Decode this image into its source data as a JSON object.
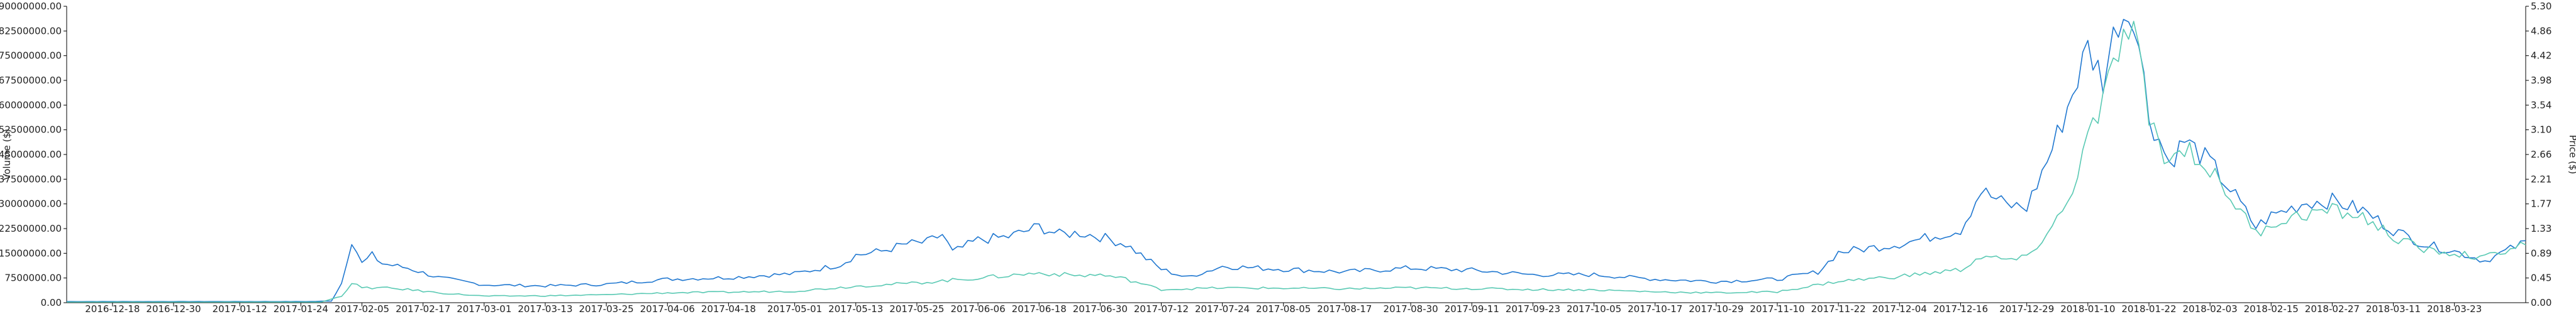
{
  "chart_data": {
    "type": "line",
    "x_start": "2016-12-09",
    "x_end": "2018-04-06",
    "y_left": {
      "label": "Volume ($)",
      "ylim": [
        0,
        90000000
      ],
      "ticks": [
        "0.00",
        "7500000.00",
        "15000000.00",
        "22500000.00",
        "30000000.00",
        "37500000.00",
        "45000000.00",
        "52500000.00",
        "60000000.00",
        "67500000.00",
        "75000000.00",
        "82500000.00",
        "90000000.00"
      ]
    },
    "y_right": {
      "label": "Price ($)",
      "ylim": [
        0,
        5.3
      ],
      "ticks": [
        "0.00",
        "0.45",
        "0.89",
        "1.33",
        "1.77",
        "2.21",
        "2.66",
        "3.10",
        "3.54",
        "3.98",
        "4.42",
        "4.86",
        "5.30"
      ]
    },
    "x_ticks": [
      "2016-12-18",
      "2016-12-30",
      "2017-01-12",
      "2017-01-24",
      "2017-02-05",
      "2017-02-17",
      "2017-03-01",
      "2017-03-13",
      "2017-03-25",
      "2017-04-06",
      "2017-04-18",
      "2017-05-01",
      "2017-05-13",
      "2017-05-25",
      "2017-06-06",
      "2017-06-18",
      "2017-06-30",
      "2017-07-12",
      "2017-07-24",
      "2017-08-05",
      "2017-08-17",
      "2017-08-30",
      "2017-09-11",
      "2017-09-23",
      "2017-10-05",
      "2017-10-17",
      "2017-10-29",
      "2017-11-10",
      "2017-11-22",
      "2017-12-04",
      "2017-12-16",
      "2017-12-29",
      "2018-01-10",
      "2018-01-22",
      "2018-02-03",
      "2018-02-15",
      "2018-02-27",
      "2018-03-11",
      "2018-03-23"
    ],
    "grid": false,
    "series": [
      {
        "axis": "right",
        "color": "#1f77d0",
        "points": [
          [
            "2016-12-09",
            0.02
          ],
          [
            "2017-01-01",
            0.02
          ],
          [
            "2017-01-25",
            0.02
          ],
          [
            "2017-01-30",
            0.03
          ],
          [
            "2017-02-01",
            0.35
          ],
          [
            "2017-02-03",
            1.12
          ],
          [
            "2017-02-05",
            0.7
          ],
          [
            "2017-02-07",
            0.85
          ],
          [
            "2017-02-09",
            0.7
          ],
          [
            "2017-02-14",
            0.62
          ],
          [
            "2017-02-20",
            0.45
          ],
          [
            "2017-03-01",
            0.32
          ],
          [
            "2017-03-13",
            0.3
          ],
          [
            "2017-03-25",
            0.33
          ],
          [
            "2017-04-06",
            0.42
          ],
          [
            "2017-04-18",
            0.45
          ],
          [
            "2017-05-01",
            0.52
          ],
          [
            "2017-05-10",
            0.68
          ],
          [
            "2017-05-13",
            0.85
          ],
          [
            "2017-05-18",
            0.92
          ],
          [
            "2017-05-23",
            1.05
          ],
          [
            "2017-05-27",
            1.08
          ],
          [
            "2017-05-30",
            1.22
          ],
          [
            "2017-06-01",
            0.9
          ],
          [
            "2017-06-06",
            1.12
          ],
          [
            "2017-06-12",
            1.18
          ],
          [
            "2017-06-18",
            1.36
          ],
          [
            "2017-06-22",
            1.22
          ],
          [
            "2017-06-26",
            1.25
          ],
          [
            "2017-06-30",
            1.18
          ],
          [
            "2017-07-05",
            1.05
          ],
          [
            "2017-07-12",
            0.6
          ],
          [
            "2017-07-17",
            0.45
          ],
          [
            "2017-07-24",
            0.65
          ],
          [
            "2017-08-05",
            0.6
          ],
          [
            "2017-08-17",
            0.55
          ],
          [
            "2017-08-30",
            0.62
          ],
          [
            "2017-09-11",
            0.58
          ],
          [
            "2017-09-23",
            0.5
          ],
          [
            "2017-10-05",
            0.5
          ],
          [
            "2017-10-17",
            0.42
          ],
          [
            "2017-10-29",
            0.38
          ],
          [
            "2017-11-10",
            0.42
          ],
          [
            "2017-11-18",
            0.55
          ],
          [
            "2017-11-22",
            0.9
          ],
          [
            "2017-12-04",
            1.05
          ],
          [
            "2017-12-16",
            1.3
          ],
          [
            "2017-12-20",
            2.0
          ],
          [
            "2017-12-25",
            1.75
          ],
          [
            "2017-12-29",
            1.7
          ],
          [
            "2018-01-03",
            2.75
          ],
          [
            "2018-01-06",
            3.5
          ],
          [
            "2018-01-10",
            4.55
          ],
          [
            "2018-01-13",
            4.0
          ],
          [
            "2018-01-16",
            5.1
          ],
          [
            "2018-01-19",
            5.25
          ],
          [
            "2018-01-22",
            3.35
          ],
          [
            "2018-01-26",
            2.5
          ],
          [
            "2018-01-29",
            2.9
          ],
          [
            "2018-02-03",
            2.5
          ],
          [
            "2018-02-08",
            1.9
          ],
          [
            "2018-02-12",
            1.35
          ],
          [
            "2018-02-15",
            1.55
          ],
          [
            "2018-02-22",
            1.8
          ],
          [
            "2018-02-27",
            1.82
          ],
          [
            "2018-03-05",
            1.65
          ],
          [
            "2018-03-11",
            1.3
          ],
          [
            "2018-03-17",
            1.05
          ],
          [
            "2018-03-23",
            0.92
          ],
          [
            "2018-03-29",
            0.75
          ],
          [
            "2018-04-02",
            0.92
          ],
          [
            "2018-04-06",
            1.08
          ]
        ]
      },
      {
        "axis": "left",
        "color": "#59c9b3",
        "points": [
          [
            "2016-12-09",
            200000
          ],
          [
            "2017-01-28",
            200000
          ],
          [
            "2017-02-01",
            2000000
          ],
          [
            "2017-02-03",
            6000000
          ],
          [
            "2017-02-05",
            4500000
          ],
          [
            "2017-02-09",
            4500000
          ],
          [
            "2017-02-14",
            4000000
          ],
          [
            "2017-02-20",
            3000000
          ],
          [
            "2017-03-01",
            2000000
          ],
          [
            "2017-03-13",
            2100000
          ],
          [
            "2017-03-25",
            2400000
          ],
          [
            "2017-04-06",
            3000000
          ],
          [
            "2017-04-18",
            3200000
          ],
          [
            "2017-05-01",
            3500000
          ],
          [
            "2017-05-13",
            5000000
          ],
          [
            "2017-05-25",
            6000000
          ],
          [
            "2017-06-06",
            7500000
          ],
          [
            "2017-06-18",
            9000000
          ],
          [
            "2017-06-26",
            8200000
          ],
          [
            "2017-06-30",
            8500000
          ],
          [
            "2017-07-05",
            7200000
          ],
          [
            "2017-07-12",
            4000000
          ],
          [
            "2017-07-24",
            4500000
          ],
          [
            "2017-08-05",
            4400000
          ],
          [
            "2017-08-17",
            4200000
          ],
          [
            "2017-08-30",
            4500000
          ],
          [
            "2017-09-11",
            4300000
          ],
          [
            "2017-09-23",
            4000000
          ],
          [
            "2017-10-05",
            3900000
          ],
          [
            "2017-10-17",
            3300000
          ],
          [
            "2017-10-29",
            3000000
          ],
          [
            "2017-11-10",
            3300000
          ],
          [
            "2017-11-22",
            6500000
          ],
          [
            "2017-12-04",
            8000000
          ],
          [
            "2017-12-16",
            10000000
          ],
          [
            "2017-12-20",
            14000000
          ],
          [
            "2017-12-25",
            13000000
          ],
          [
            "2017-12-29",
            13500000
          ],
          [
            "2018-01-03",
            23000000
          ],
          [
            "2018-01-06",
            30000000
          ],
          [
            "2018-01-10",
            50000000
          ],
          [
            "2018-01-13",
            60000000
          ],
          [
            "2018-01-16",
            78000000
          ],
          [
            "2018-01-19",
            82000000
          ],
          [
            "2018-01-22",
            56000000
          ],
          [
            "2018-01-26",
            42000000
          ],
          [
            "2018-01-29",
            48000000
          ],
          [
            "2018-02-03",
            40000000
          ],
          [
            "2018-02-08",
            30000000
          ],
          [
            "2018-02-12",
            21000000
          ],
          [
            "2018-02-15",
            24000000
          ],
          [
            "2018-02-22",
            27000000
          ],
          [
            "2018-02-27",
            28000000
          ],
          [
            "2018-03-05",
            26000000
          ],
          [
            "2018-03-11",
            20000000
          ],
          [
            "2018-03-17",
            16000000
          ],
          [
            "2018-03-23",
            15000000
          ],
          [
            "2018-03-29",
            13500000
          ],
          [
            "2018-04-02",
            16000000
          ],
          [
            "2018-04-06",
            18000000
          ]
        ]
      }
    ]
  }
}
